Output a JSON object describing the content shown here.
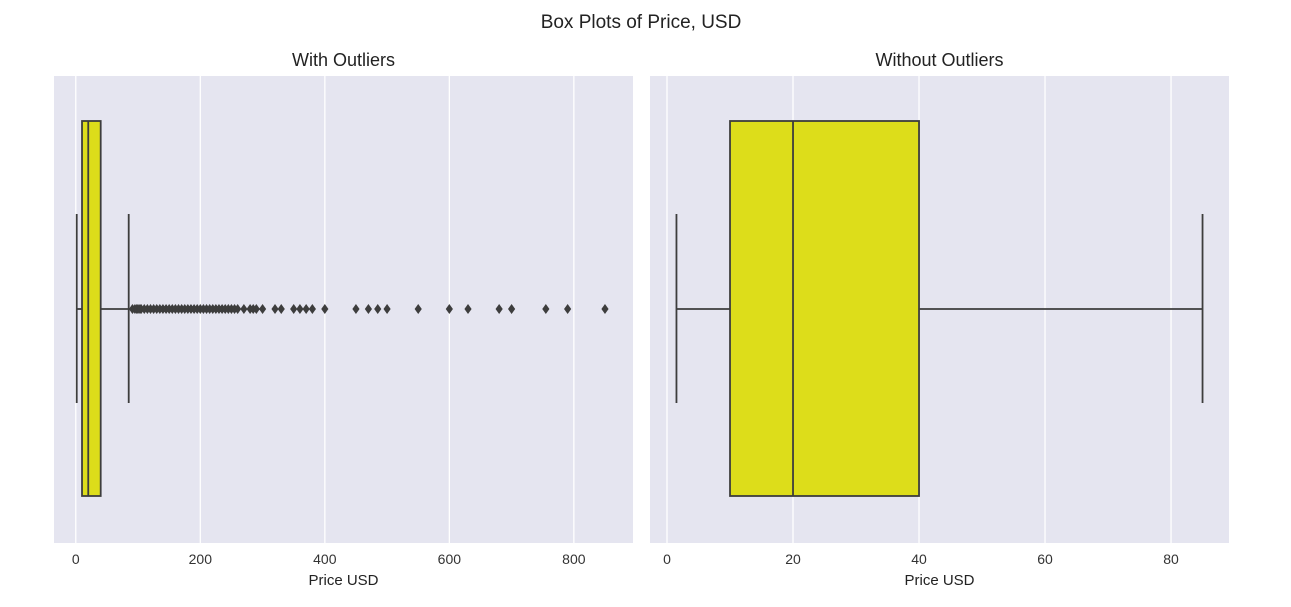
{
  "chart_data": {
    "type": "box",
    "suptitle": "Box Plots of Price, USD",
    "colors": {
      "plot_background": "#e5e5f0",
      "grid": "#ffffff",
      "box_fill": "#dddd1a",
      "line": "#3d3d3d"
    },
    "orientation": "horizontal",
    "panels": [
      {
        "title": "With Outliers",
        "xlabel": "Price USD",
        "xlim": [
          -35,
          895
        ],
        "xticks": [
          0,
          200,
          400,
          600,
          800
        ],
        "grid": "vertical",
        "box": {
          "whisker_low": 1.5,
          "q1": 10,
          "median": 20,
          "q3": 40,
          "whisker_high": 85
        },
        "outliers": [
          91,
          95,
          98,
          100,
          103,
          105,
          110,
          115,
          120,
          125,
          130,
          135,
          140,
          145,
          150,
          155,
          160,
          165,
          170,
          175,
          180,
          185,
          190,
          195,
          200,
          205,
          210,
          215,
          220,
          225,
          230,
          235,
          240,
          245,
          250,
          255,
          260,
          270,
          280,
          285,
          290,
          300,
          320,
          330,
          350,
          360,
          370,
          380,
          400,
          450,
          470,
          485,
          500,
          550,
          600,
          630,
          680,
          700,
          755,
          790,
          850
        ]
      },
      {
        "title": "Without Outliers",
        "xlabel": "Price USD",
        "xlim": [
          -2.7,
          89.2
        ],
        "xticks": [
          0,
          20,
          40,
          60,
          80
        ],
        "grid": "vertical",
        "box": {
          "whisker_low": 1.5,
          "q1": 10,
          "median": 20,
          "q3": 40,
          "whisker_high": 85
        },
        "outliers": []
      }
    ]
  }
}
